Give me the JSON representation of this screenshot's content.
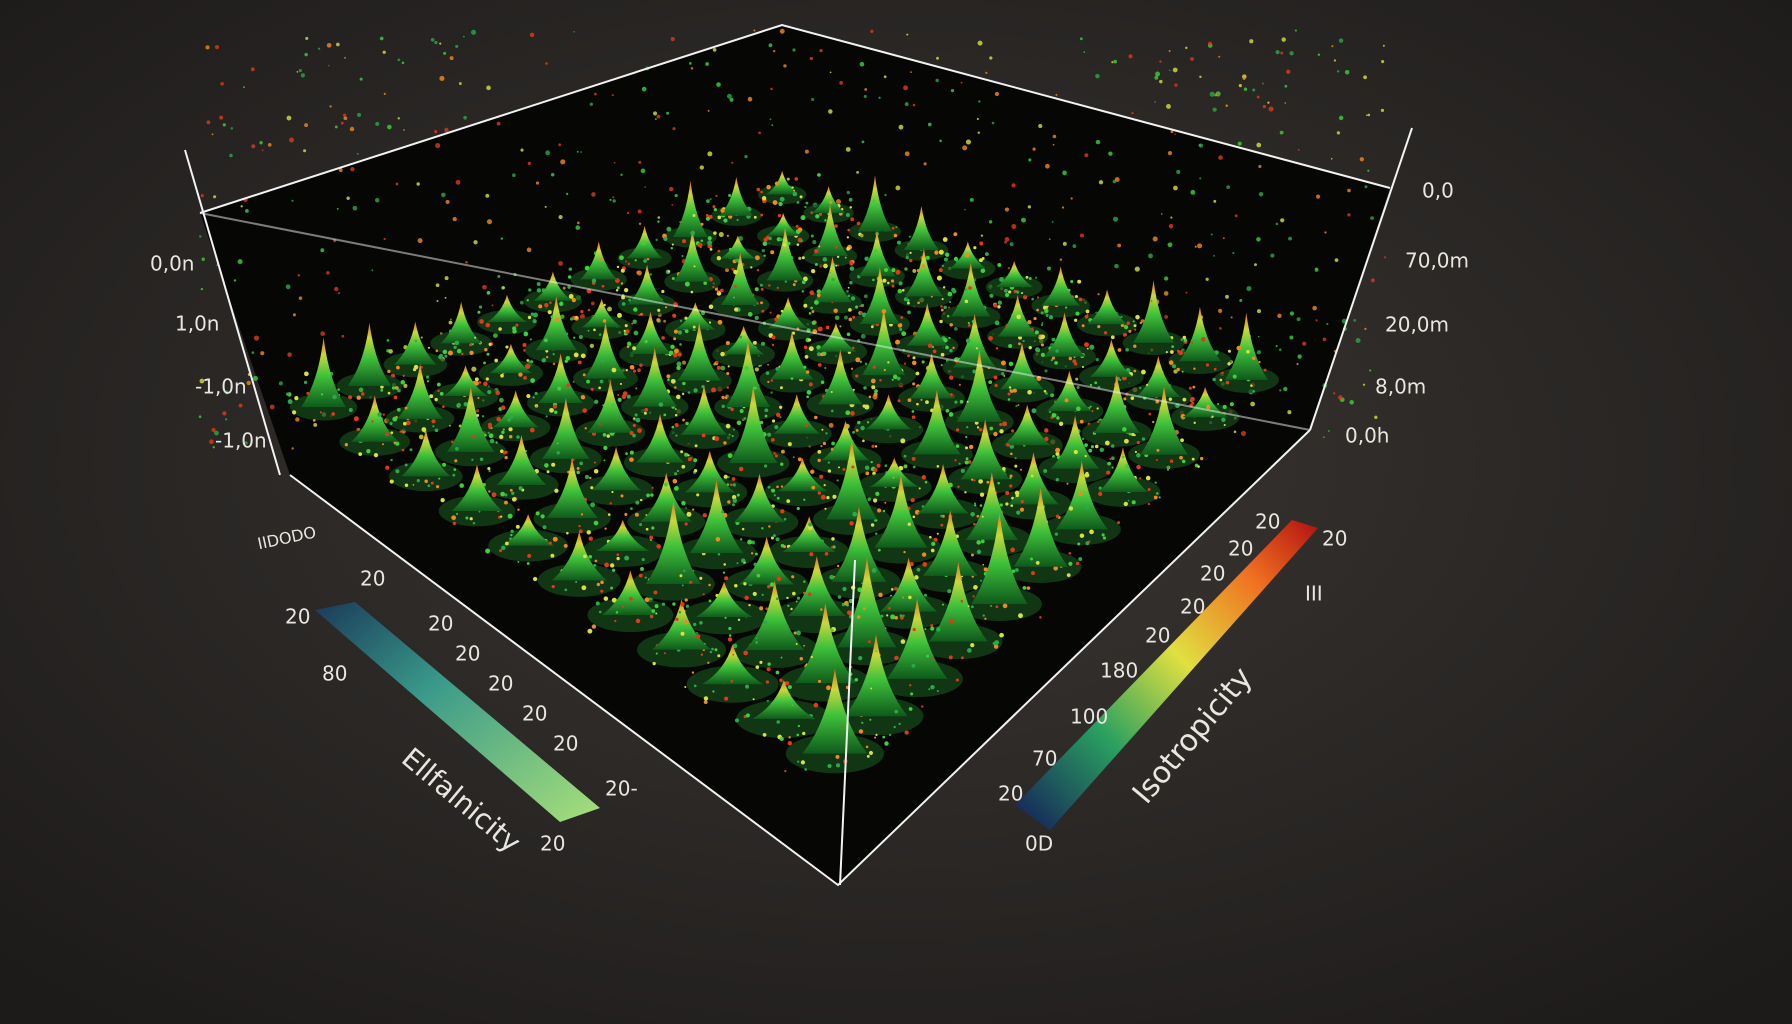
{
  "chart_data": {
    "type": "surface3d",
    "z_axis_left_labels": [
      "0,0n",
      "1,0n",
      "-1,0n",
      "-1,0n"
    ],
    "z_axis_right_labels": [
      "0,0",
      "70,0m",
      "20,0m",
      "8,0m",
      "0,0h"
    ],
    "floor_label": "IIDODO",
    "colorbar_left": {
      "title": "Ellfalnicity",
      "tick_labels": [
        "20",
        "80",
        "20",
        "20",
        "20",
        "20",
        "20",
        "20",
        "20-",
        "20"
      ]
    },
    "colorbar_right": {
      "title": "Isotropicity",
      "tick_labels": [
        "20",
        "20",
        "20",
        "20",
        "20",
        "180",
        "100",
        "70",
        "20",
        "0D",
        "20",
        "III"
      ]
    }
  }
}
